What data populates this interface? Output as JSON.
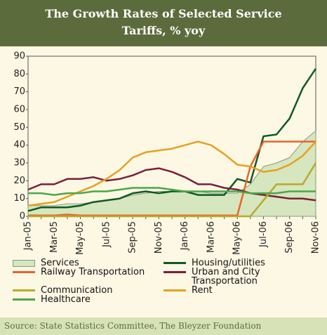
{
  "chart_data": {
    "type": "line",
    "title": "The Growth Rates of Selected Service Tariffs, % yoy",
    "source": "Source: State Statistics Committee, The Bleyzer Foundation",
    "categories": [
      "Jan-05",
      null,
      "Mar-05",
      null,
      "May-05",
      null,
      "Jul-05",
      null,
      "Sep-05",
      null,
      "Nov-05",
      null,
      "Jan-06",
      null,
      "Mar-06",
      null,
      "May-06",
      null,
      "Jul-06",
      null,
      "Sep-06",
      null,
      "Nov-06"
    ],
    "ylim": [
      0,
      90
    ],
    "yticks": [
      0,
      10,
      20,
      30,
      40,
      50,
      60,
      70,
      80,
      90
    ],
    "series": [
      {
        "name": "Services",
        "type": "area",
        "color": "#8a9a80",
        "fill": "#d6e6bf",
        "values": [
          6,
          6,
          6,
          7,
          7,
          8,
          9,
          10,
          12,
          13,
          14,
          14,
          14,
          14,
          13,
          13,
          13,
          18,
          28,
          30,
          33,
          42,
          48
        ]
      },
      {
        "name": "Housing/utilities",
        "color": "#0d5a26",
        "values": [
          3,
          5,
          5,
          5,
          6,
          8,
          9,
          10,
          13,
          14,
          13,
          14,
          14,
          12,
          12,
          12,
          21,
          19,
          45,
          46,
          55,
          72,
          83
        ]
      },
      {
        "name": "Railway Transportation",
        "color": "#e8642a",
        "values": [
          0.5,
          0.5,
          0.5,
          1,
          0.5,
          0.5,
          0.5,
          0.5,
          0.5,
          0.5,
          0.5,
          0.5,
          0.5,
          0.5,
          0.5,
          0.5,
          0.5,
          28,
          42,
          42,
          42,
          42,
          42
        ]
      },
      {
        "name": "Urban and City Transportation",
        "color": "#7a1f3a",
        "values": [
          15,
          18,
          18,
          21,
          21,
          22,
          20,
          21,
          23,
          26,
          27,
          25,
          22,
          18,
          18,
          16,
          15,
          13,
          12,
          11,
          10,
          10,
          9
        ]
      },
      {
        "name": "Communication",
        "color": "#b8aa2a",
        "values": [
          0,
          0,
          0,
          0,
          0,
          0,
          0,
          0,
          0,
          0,
          0,
          0,
          0,
          0,
          0,
          0,
          0,
          0,
          9,
          18,
          18,
          18,
          30
        ]
      },
      {
        "name": "Rent",
        "color": "#e8a020",
        "values": [
          6,
          7,
          8,
          11,
          14,
          17,
          21,
          26,
          33,
          36,
          37,
          38,
          40,
          42,
          40,
          35,
          29,
          28,
          25,
          26,
          29,
          34,
          42
        ]
      },
      {
        "name": "Healthcare",
        "color": "#4aa84a",
        "values": [
          13,
          13,
          12,
          13,
          13,
          14,
          14,
          15,
          16,
          16,
          16,
          15,
          14,
          14,
          14,
          14,
          14,
          13,
          13,
          13,
          14,
          14,
          14
        ]
      }
    ]
  }
}
